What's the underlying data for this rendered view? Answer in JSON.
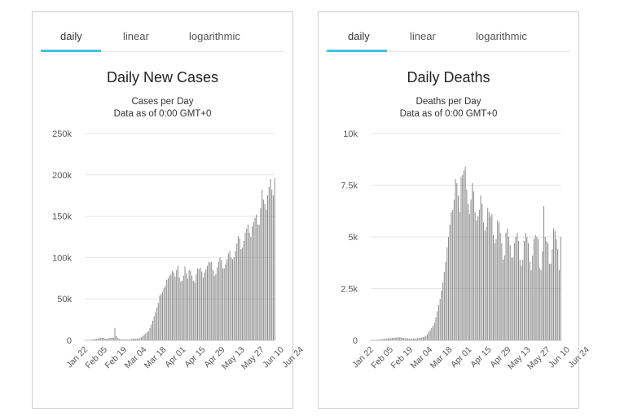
{
  "tabs": [
    "daily",
    "linear",
    "logarithmic"
  ],
  "charts": [
    {
      "title": "Daily New Cases",
      "subtitle": "Cases per Day",
      "subtitle2": "Data as of 0:00 GMT+0"
    },
    {
      "title": "Daily Deaths",
      "subtitle": "Deaths per Day",
      "subtitle2": "Data as of 0:00 GMT+0"
    }
  ],
  "colors": {
    "bar": "#8c8c8c",
    "accent": "#3fc1e8",
    "grid": "#e6e6e6"
  },
  "chart_data": [
    {
      "type": "bar",
      "title": "Daily New Cases",
      "subtitle": "Cases per Day",
      "yticks": [
        "0",
        "50k",
        "100k",
        "150k",
        "200k",
        "250k"
      ],
      "ylim": [
        0,
        250000
      ],
      "xticks": [
        "Jan 22",
        "Feb 05",
        "Feb 19",
        "Mar 04",
        "Mar 18",
        "Apr 01",
        "Apr 15",
        "Apr 29",
        "May 13",
        "May 27",
        "Jun 10",
        "Jun 24"
      ],
      "start_date": "Jan 22",
      "values": [
        0,
        0,
        0,
        0,
        0,
        1000,
        1000,
        2000,
        2000,
        2000,
        3000,
        3000,
        3000,
        3000,
        2000,
        2000,
        2000,
        3000,
        3000,
        3000,
        3000,
        15000,
        5000,
        3000,
        2000,
        1000,
        1000,
        1000,
        1000,
        1000,
        1000,
        1000,
        1000,
        2000,
        2000,
        2000,
        2000,
        2000,
        2000,
        3000,
        4000,
        5000,
        7000,
        8000,
        10000,
        11000,
        15000,
        19000,
        24000,
        29000,
        34000,
        40000,
        45000,
        54000,
        56000,
        58000,
        63000,
        66000,
        73000,
        75000,
        78000,
        80000,
        84000,
        82000,
        77000,
        85000,
        90000,
        76000,
        71000,
        72000,
        78000,
        89000,
        81000,
        75000,
        85000,
        84000,
        78000,
        72000,
        70000,
        80000,
        87000,
        86000,
        88000,
        83000,
        76000,
        82000,
        86000,
        90000,
        95000,
        94000,
        95000,
        85000,
        78000,
        80000,
        88000,
        95000,
        100000,
        97000,
        87000,
        87000,
        92000,
        98000,
        105000,
        108000,
        100000,
        98000,
        100000,
        108000,
        117000,
        126000,
        123000,
        110000,
        112000,
        120000,
        130000,
        135000,
        140000,
        130000,
        125000,
        138000,
        143000,
        148000,
        152000,
        140000,
        140000,
        160000,
        182000,
        170000,
        165000,
        158000,
        175000,
        185000,
        195000,
        182000,
        175000,
        196000
      ]
    },
    {
      "type": "bar",
      "title": "Daily Deaths",
      "subtitle": "Deaths per Day",
      "yticks": [
        "0",
        "2.5k",
        "5k",
        "7.5k",
        "10k"
      ],
      "ylim": [
        0,
        10000
      ],
      "xticks": [
        "Jan 22",
        "Feb 05",
        "Feb 19",
        "Mar 04",
        "Mar 18",
        "Apr 01",
        "Apr 15",
        "Apr 29",
        "May 13",
        "May 27",
        "Jun 10",
        "Jun 24"
      ],
      "start_date": "Jan 22",
      "values": [
        0,
        0,
        0,
        0,
        0,
        30,
        40,
        50,
        60,
        70,
        80,
        90,
        100,
        100,
        100,
        120,
        120,
        130,
        140,
        140,
        150,
        150,
        120,
        110,
        110,
        100,
        90,
        80,
        80,
        80,
        80,
        90,
        90,
        100,
        110,
        120,
        130,
        150,
        180,
        220,
        300,
        400,
        500,
        600,
        700,
        850,
        1100,
        1400,
        1700,
        2000,
        2400,
        2800,
        3300,
        3800,
        4500,
        5000,
        5600,
        6200,
        6300,
        6800,
        7800,
        7600,
        7000,
        6200,
        7900,
        8000,
        8200,
        8400,
        7300,
        6600,
        6100,
        6800,
        7600,
        7200,
        6200,
        5800,
        6000,
        6300,
        7000,
        6600,
        5700,
        5300,
        5500,
        6400,
        6200,
        6000,
        6100,
        5100,
        4700,
        4900,
        5800,
        5700,
        5200,
        4700,
        3900,
        4100,
        5200,
        5400,
        5000,
        4600,
        4000,
        4000,
        4700,
        5000,
        5200,
        4800,
        3900,
        3600,
        3900,
        4800,
        5200,
        5000,
        4700,
        3800,
        3400,
        4100,
        4900,
        5100,
        5000,
        4900,
        3500,
        3400,
        4300,
        6500,
        5000,
        4800,
        4700,
        3700,
        3700,
        4400,
        5400,
        5300,
        4900,
        4400,
        3400,
        5000
      ]
    }
  ]
}
